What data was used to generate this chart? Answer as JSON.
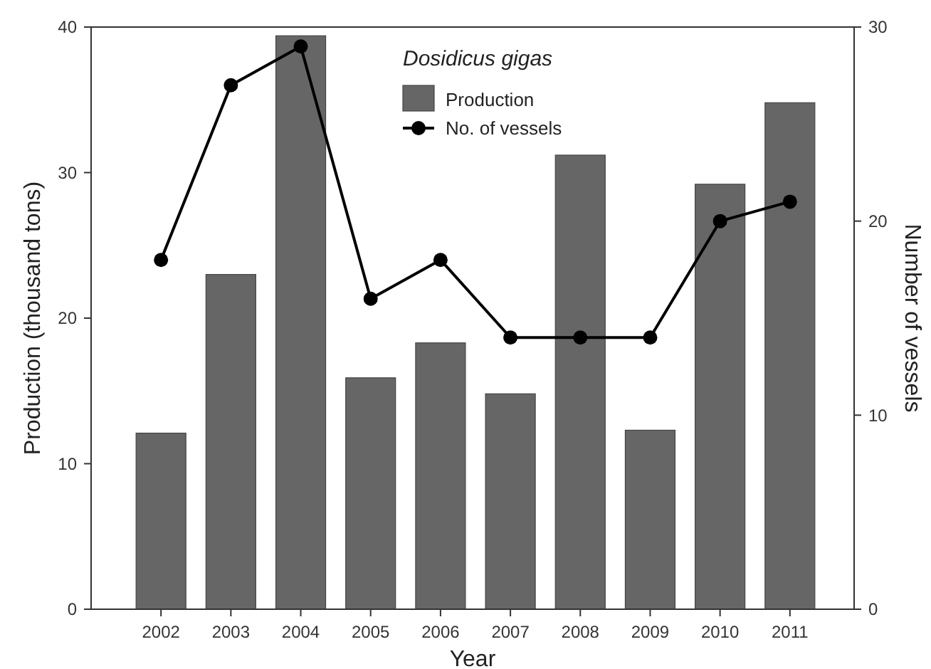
{
  "chart_data": {
    "type": "bar",
    "xlabel": "Year",
    "ylabel": "Production (thousand tons)",
    "y2label": "Number of vessels",
    "legend_title": "Dosidicus gigas",
    "legend": "top",
    "categories": [
      "2002",
      "2003",
      "2004",
      "2005",
      "2006",
      "2007",
      "2008",
      "2009",
      "2010",
      "2011"
    ],
    "series": [
      {
        "name": "Production",
        "type": "bar",
        "color": "#666666",
        "values": [
          12.1,
          23.0,
          39.4,
          15.9,
          18.3,
          14.8,
          31.2,
          12.3,
          29.2,
          34.8
        ]
      },
      {
        "name": "No. of vessels",
        "type": "line",
        "axis": "y2",
        "color": "#000000",
        "marker": "circle",
        "values": [
          18,
          27,
          29,
          16,
          18,
          14,
          14,
          14,
          20,
          21
        ]
      }
    ],
    "ylim": [
      0,
      40
    ],
    "yticks": [
      0,
      10,
      20,
      30,
      40
    ],
    "y2lim": [
      0,
      30
    ],
    "y2ticks": [
      0,
      10,
      20,
      30
    ],
    "grid": false
  }
}
